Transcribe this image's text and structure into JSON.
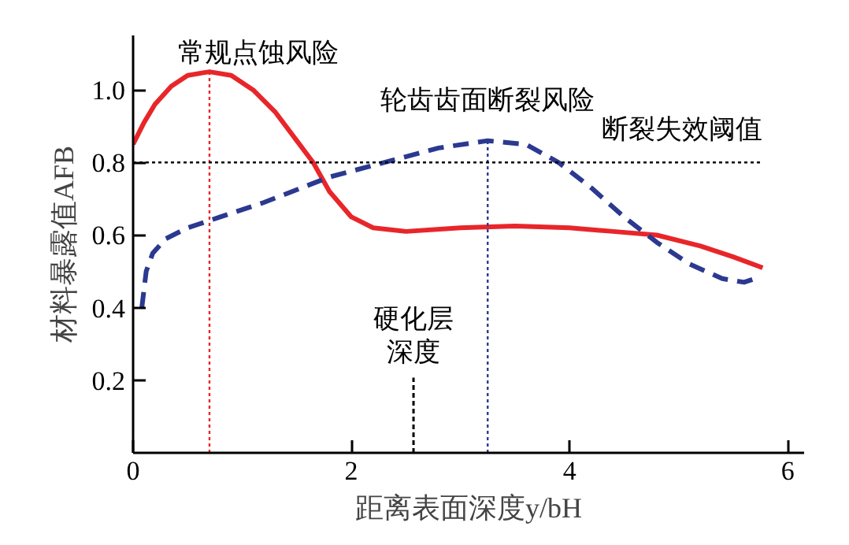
{
  "chart_data": {
    "type": "line",
    "xlabel": "距离表面深度y/bH",
    "ylabel": "材料暴露值AFB",
    "xlim": [
      0,
      6.15
    ],
    "ylim": [
      0,
      1.15
    ],
    "xticks": [
      0,
      2,
      4,
      6
    ],
    "yticks": [
      {
        "value": 0.2,
        "label": "0.2"
      },
      {
        "value": 0.4,
        "label": "0.4"
      },
      {
        "value": 0.6,
        "label": "0.6"
      },
      {
        "value": 0.8,
        "label": "0.8"
      },
      {
        "value": 1.0,
        "label": "1.0"
      }
    ],
    "grid": false,
    "marker": "none",
    "series": [
      {
        "color": "#e8262a",
        "line_style": "solid",
        "x": [
          0,
          0.1,
          0.2,
          0.35,
          0.5,
          0.7,
          0.9,
          1.1,
          1.3,
          1.5,
          1.65,
          1.8,
          2.0,
          2.2,
          2.5,
          3.0,
          3.5,
          4.0,
          4.4,
          4.8,
          5.2,
          5.5,
          5.77
        ],
        "values": [
          0.85,
          0.91,
          0.96,
          1.01,
          1.04,
          1.05,
          1.04,
          1.0,
          0.94,
          0.86,
          0.8,
          0.72,
          0.65,
          0.62,
          0.61,
          0.62,
          0.625,
          0.62,
          0.61,
          0.6,
          0.57,
          0.54,
          0.51
        ]
      },
      {
        "color": "#2b3990",
        "line_style": "dashed",
        "x": [
          0.08,
          0.12,
          0.18,
          0.3,
          0.5,
          0.8,
          1.2,
          1.8,
          2.3,
          2.8,
          3.25,
          3.6,
          3.9,
          4.2,
          4.5,
          4.8,
          5.1,
          5.4,
          5.6,
          5.7
        ],
        "values": [
          0.4,
          0.5,
          0.55,
          0.59,
          0.62,
          0.65,
          0.69,
          0.76,
          0.8,
          0.84,
          0.86,
          0.85,
          0.8,
          0.73,
          0.65,
          0.58,
          0.52,
          0.48,
          0.47,
          0.48
        ]
      }
    ],
    "ref_lines": [
      {
        "axis": "x",
        "value": 0.7,
        "label": "常规点蚀风险",
        "color": "#e8262a",
        "line_style": "dotted"
      },
      {
        "axis": "x",
        "value": 3.25,
        "label": "轮齿齿面断裂风险",
        "color": "#2b3990",
        "line_style": "dotted"
      },
      {
        "axis": "x",
        "value": 2.57,
        "label": "硬化层深度",
        "color": "#000000",
        "line_style": "dashed"
      },
      {
        "axis": "y",
        "value": 0.8,
        "label": "断裂失效阈值",
        "color": "#000000",
        "line_style": "dotted"
      }
    ]
  }
}
